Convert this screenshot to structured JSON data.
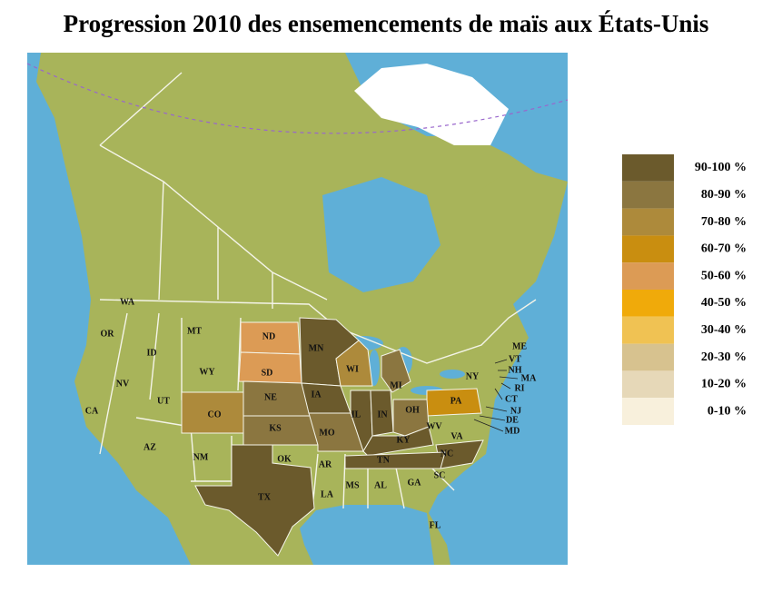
{
  "title": "Progression 2010 des ensemencements de maïs aux États-Unis",
  "legend": [
    {
      "label": "90-100 %",
      "color": "#6b5a2c"
    },
    {
      "label": "80-90 %",
      "color": "#8b7640"
    },
    {
      "label": "70-80 %",
      "color": "#ad8a3b"
    },
    {
      "label": "60-70 %",
      "color": "#c98e10"
    },
    {
      "label": "50-60 %",
      "color": "#dc9b55"
    },
    {
      "label": "40-50 %",
      "color": "#f0aa0a"
    },
    {
      "label": "30-40 %",
      "color": "#f0c253"
    },
    {
      "label": "20-30 %",
      "color": "#d7c28f"
    },
    {
      "label": "10-20 %",
      "color": "#e6d8b8"
    },
    {
      "label": "0-10 %",
      "color": "#f8f0dc"
    }
  ],
  "states": [
    {
      "label": "WA"
    },
    {
      "label": "OR"
    },
    {
      "label": "MT"
    },
    {
      "label": "ND",
      "color": "#dc9b55"
    },
    {
      "label": "MN",
      "color": "#6b5a2c"
    },
    {
      "label": "ID"
    },
    {
      "label": "SD",
      "color": "#dc9b55"
    },
    {
      "label": "WI",
      "color": "#ad8a3b"
    },
    {
      "label": "ME"
    },
    {
      "label": "VT"
    },
    {
      "label": "NH"
    },
    {
      "label": "NY"
    },
    {
      "label": "MA"
    },
    {
      "label": "RI"
    },
    {
      "label": "MI",
      "color": "#8b7640"
    },
    {
      "label": "WY"
    },
    {
      "label": "NE",
      "color": "#8b7640"
    },
    {
      "label": "IA",
      "color": "#6b5a2c"
    },
    {
      "label": "CT"
    },
    {
      "label": "NV"
    },
    {
      "label": "PA",
      "color": "#c98e10"
    },
    {
      "label": "NJ"
    },
    {
      "label": "OH",
      "color": "#8b7640"
    },
    {
      "label": "UT"
    },
    {
      "label": "IL",
      "color": "#6b5a2c"
    },
    {
      "label": "IN",
      "color": "#6b5a2c"
    },
    {
      "label": "CO",
      "color": "#ad8a3b"
    },
    {
      "label": "DE"
    },
    {
      "label": "MD"
    },
    {
      "label": "KS",
      "color": "#8b7640"
    },
    {
      "label": "MO",
      "color": "#8b7640"
    },
    {
      "label": "WV"
    },
    {
      "label": "CA"
    },
    {
      "label": "VA"
    },
    {
      "label": "KY",
      "color": "#6b5a2c"
    },
    {
      "label": "AZ"
    },
    {
      "label": "OK"
    },
    {
      "label": "NC",
      "color": "#6b5a2c"
    },
    {
      "label": "TN",
      "color": "#6b5a2c"
    },
    {
      "label": "AR"
    },
    {
      "label": "NM"
    },
    {
      "label": "SC"
    },
    {
      "label": "MS"
    },
    {
      "label": "AL"
    },
    {
      "label": "GA"
    },
    {
      "label": "LA"
    },
    {
      "label": "TX",
      "color": "#6b5a2c"
    },
    {
      "label": "FL"
    }
  ]
}
